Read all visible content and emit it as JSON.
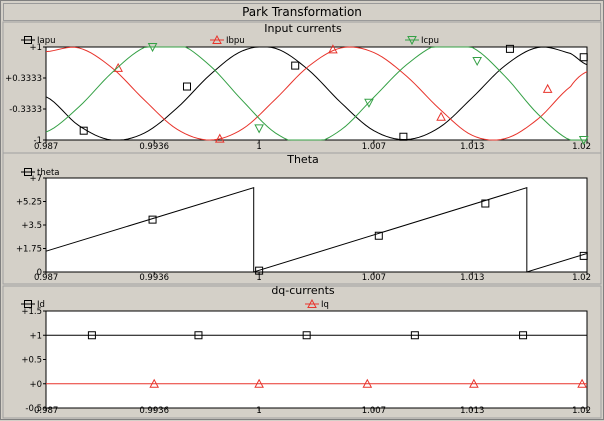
{
  "window": {
    "title": "Park Transformation"
  },
  "colors": {
    "black": "#000000",
    "red": "#e8342c",
    "green": "#34a045",
    "bg": "#ffffff",
    "frame": "#d4d0c8"
  },
  "chart_data": [
    {
      "type": "line",
      "title": "Input currents",
      "x_ticks": [
        "0.987",
        "0.9936",
        "1",
        "1.007",
        "1.013",
        "1.02"
      ],
      "y_ticks": [
        "+1",
        "+0.3333",
        "-0.3333",
        "-1"
      ],
      "xlim": [
        0.987,
        1.02
      ],
      "ylim": [
        -1,
        1
      ],
      "x_tick_values": [
        0.987,
        0.9936,
        1.0,
        1.007,
        1.013,
        1.02
      ],
      "y_tick_values": [
        1,
        0.3333,
        -0.3333,
        -1
      ],
      "series": [
        {
          "name": "Iapu",
          "color": "#000000",
          "marker": "square",
          "x": [
            0.987,
            0.989,
            0.991,
            0.993,
            0.995,
            0.997,
            0.999,
            1.001,
            1.003,
            1.005,
            1.007,
            1.009,
            1.011,
            1.013,
            1.015,
            1.017,
            1.019,
            1.02
          ],
          "values": [
            -0.07,
            -0.69,
            -1.0,
            -0.85,
            -0.31,
            0.4,
            0.92,
            0.97,
            0.51,
            -0.2,
            -0.8,
            -0.99,
            -0.73,
            -0.09,
            0.6,
            0.99,
            0.86,
            0.62
          ],
          "markers_x": [
            0.9893,
            0.9956,
            1.0022,
            1.0088,
            1.0153,
            1.0198
          ],
          "markers_y": [
            -0.8,
            0.15,
            0.6,
            -0.93,
            0.96,
            0.78
          ]
        },
        {
          "name": "Ibpu",
          "color": "#e8342c",
          "marker": "triangle",
          "x": [
            0.987,
            0.989,
            0.991,
            0.993,
            0.995,
            0.997,
            0.999,
            1.001,
            1.003,
            1.005,
            1.007,
            1.009,
            1.011,
            1.013,
            1.015,
            1.017,
            1.019,
            1.02
          ],
          "values": [
            0.9,
            0.98,
            0.56,
            -0.14,
            -0.77,
            -1.0,
            -0.76,
            -0.12,
            0.58,
            0.98,
            0.88,
            0.37,
            -0.33,
            -0.9,
            -0.97,
            -0.55,
            0.15,
            0.47
          ],
          "markers_x": [
            0.9914,
            0.9976,
            1.0045,
            1.0111,
            1.0176
          ],
          "markers_y": [
            0.55,
            -0.97,
            0.95,
            -0.5,
            0.1
          ]
        },
        {
          "name": "Icpu",
          "color": "#34a045",
          "marker": "triangle-down",
          "x": [
            0.987,
            0.989,
            0.991,
            0.993,
            0.995,
            0.997,
            0.999,
            1.001,
            1.003,
            1.005,
            1.007,
            1.009,
            1.011,
            1.013,
            1.015,
            1.017,
            1.019,
            1.02
          ],
          "values": [
            -0.83,
            -0.29,
            0.44,
            0.99,
            1.08,
            0.6,
            -0.16,
            -0.85,
            -1.09,
            -0.78,
            -0.08,
            0.62,
            1.06,
            0.99,
            0.37,
            -0.44,
            -1.01,
            -1.09
          ],
          "markers_x": [
            0.9935,
            1.0,
            1.0067,
            1.0133,
            1.0198
          ],
          "markers_y": [
            1.0,
            -0.75,
            -0.2,
            0.7,
            -1.0
          ]
        }
      ]
    },
    {
      "type": "line",
      "title": "Theta",
      "x_ticks": [
        "0.987",
        "0.9936",
        "1",
        "1.007",
        "1.013",
        "1.02"
      ],
      "y_ticks": [
        "+7",
        "+5.25",
        "+3.5",
        "+1.75",
        "0"
      ],
      "xlim": [
        0.987,
        1.02
      ],
      "ylim": [
        0,
        7
      ],
      "x_tick_values": [
        0.987,
        0.9936,
        1.0,
        1.007,
        1.013,
        1.02
      ],
      "y_tick_values": [
        7,
        5.25,
        3.5,
        1.75,
        0
      ],
      "series": [
        {
          "name": "theta",
          "color": "#000000",
          "marker": "square",
          "x": [
            0.987,
            0.99967,
            0.99967,
            1.01633,
            1.01633,
            1.02
          ],
          "values": [
            1.55,
            6.28,
            0.0,
            6.28,
            0.0,
            1.38
          ],
          "markers_x": [
            0.9935,
            1.0,
            1.0073,
            1.0138,
            1.0198
          ],
          "markers_y": [
            3.9,
            0.1,
            2.7,
            5.1,
            1.2
          ]
        }
      ]
    },
    {
      "type": "line",
      "title": "dq-currents",
      "x_ticks": [
        "0.987",
        "0.9936",
        "1",
        "1.007",
        "1.013",
        "1.02"
      ],
      "y_ticks": [
        "+1.5",
        "+1",
        "+0.5",
        "+0",
        "-0.5"
      ],
      "xlim": [
        0.987,
        1.02
      ],
      "ylim": [
        -0.5,
        1.5
      ],
      "x_tick_values": [
        0.987,
        0.9936,
        1.0,
        1.007,
        1.013,
        1.02
      ],
      "y_tick_values": [
        1.5,
        1,
        0.5,
        0,
        -0.5
      ],
      "series": [
        {
          "name": "Id",
          "color": "#000000",
          "marker": "square",
          "x": [
            0.987,
            1.02
          ],
          "values": [
            1,
            1
          ],
          "markers_x": [
            0.9898,
            0.9963,
            1.0029,
            1.0095,
            1.0161
          ],
          "markers_y": [
            1,
            1,
            1,
            1,
            1
          ]
        },
        {
          "name": "Iq",
          "color": "#e8342c",
          "marker": "triangle",
          "x": [
            0.987,
            1.02
          ],
          "values": [
            0,
            0
          ],
          "markers_x": [
            0.9936,
            1.0,
            1.0066,
            1.0131,
            1.0197
          ],
          "markers_y": [
            0,
            0,
            0,
            0,
            0
          ]
        }
      ]
    }
  ]
}
